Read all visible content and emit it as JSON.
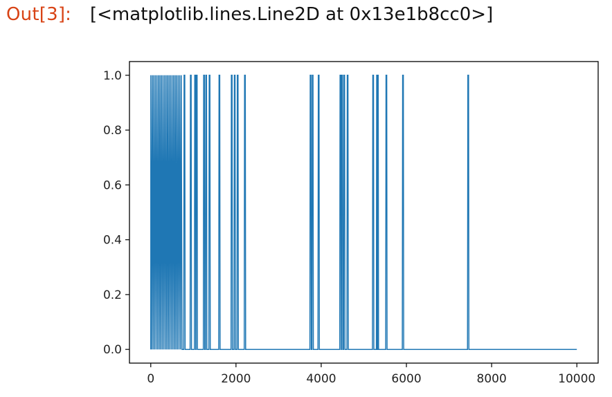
{
  "output": {
    "prompt": "Out[3]:",
    "text": "[<matplotlib.lines.Line2D at 0x13e1b8cc0>]"
  },
  "colors": {
    "prompt": "#d84315",
    "line": "#1f77b4",
    "axes": "#000000"
  },
  "chart_data": {
    "type": "line",
    "title": "",
    "xlabel": "",
    "ylabel": "",
    "xlim": [
      -500,
      10500
    ],
    "ylim": [
      -0.05,
      1.05
    ],
    "grid": false,
    "legend": "none",
    "xticks": [
      0,
      2000,
      4000,
      6000,
      8000,
      10000
    ],
    "xtick_labels": [
      "0",
      "2000",
      "4000",
      "6000",
      "8000",
      "10000"
    ],
    "yticks": [
      0.0,
      0.2,
      0.4,
      0.6,
      0.8,
      1.0
    ],
    "ytick_labels": [
      "0.0",
      "0.2",
      "0.4",
      "0.6",
      "0.8",
      "1.0"
    ],
    "x_range": [
      0,
      9999
    ],
    "baseline": 0.0,
    "dense_spike_region": [
      0,
      740
    ],
    "spike_positions": [
      790,
      940,
      1040,
      1080,
      1250,
      1300,
      1380,
      1610,
      1900,
      1970,
      2040,
      2210,
      3750,
      3800,
      3940,
      4450,
      4490,
      4540,
      4620,
      5220,
      5310,
      5330,
      5530,
      5920,
      7450
    ],
    "spike_value": 1.0
  }
}
